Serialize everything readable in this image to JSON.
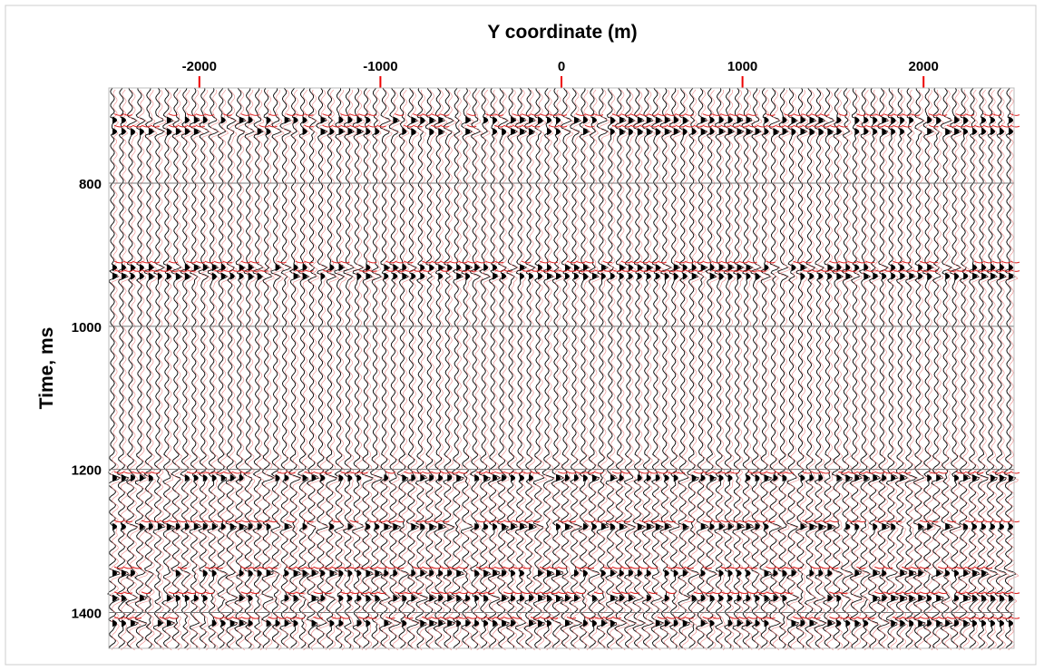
{
  "chart_data": {
    "type": "seismic",
    "xlabel": "Y coordinate (m)",
    "ylabel": "Time, ms",
    "xlim": [
      -2500,
      2500
    ],
    "xticks": [
      -2000,
      -1000,
      0,
      1000,
      2000
    ],
    "ylim": [
      1450,
      667
    ],
    "yticks": [
      800,
      1000,
      1200,
      1400
    ],
    "grid": true,
    "event_times": [
      712,
      728,
      918,
      930,
      1212,
      1280,
      1345,
      1380,
      1415
    ]
  }
}
